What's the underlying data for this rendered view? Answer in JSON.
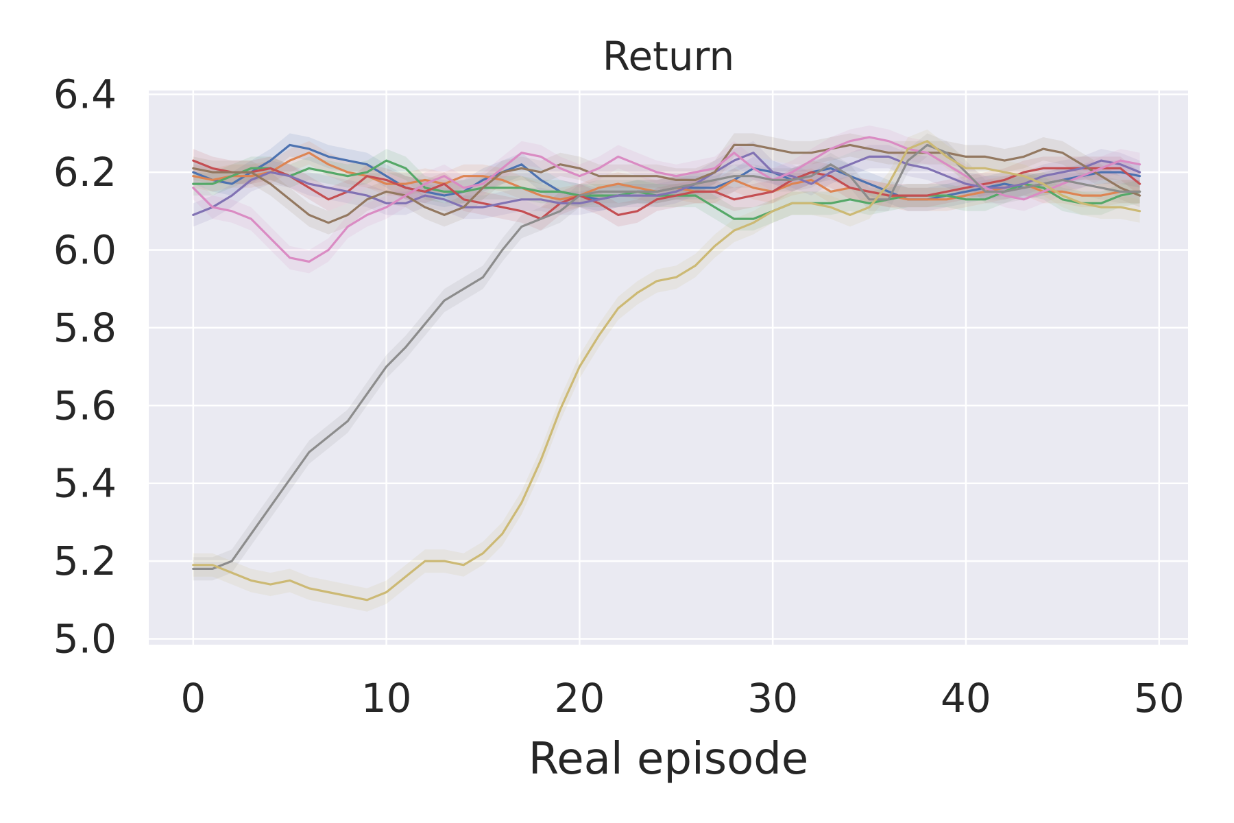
{
  "chart_data": {
    "type": "line",
    "title": "Return",
    "xlabel": "Real episode",
    "ylabel": "",
    "xlim": [
      -2.3,
      51.5
    ],
    "ylim": [
      4.985,
      6.41
    ],
    "xticks": [
      0,
      10,
      20,
      30,
      40,
      50
    ],
    "yticks": [
      5.0,
      5.2,
      5.4,
      5.6,
      5.8,
      6.0,
      6.2,
      6.4
    ],
    "xtick_labels": [
      "0",
      "10",
      "20",
      "30",
      "40",
      "50"
    ],
    "ytick_labels": [
      "5.0",
      "5.2",
      "5.4",
      "5.6",
      "5.8",
      "6.0",
      "6.2",
      "6.4"
    ],
    "grid": true,
    "legend": false,
    "shaded_band": true,
    "x": [
      0,
      1,
      2,
      3,
      4,
      5,
      6,
      7,
      8,
      9,
      10,
      11,
      12,
      13,
      14,
      15,
      16,
      17,
      18,
      19,
      20,
      21,
      22,
      23,
      24,
      25,
      26,
      27,
      28,
      29,
      30,
      31,
      32,
      33,
      34,
      35,
      36,
      37,
      38,
      39,
      40,
      41,
      42,
      43,
      44,
      45,
      46,
      47,
      48,
      49
    ],
    "series": [
      {
        "color": "#4c72b0",
        "values": [
          6.2,
          6.18,
          6.17,
          6.2,
          6.23,
          6.27,
          6.26,
          6.24,
          6.23,
          6.22,
          6.19,
          6.16,
          6.15,
          6.14,
          6.15,
          6.18,
          6.2,
          6.22,
          6.18,
          6.15,
          6.14,
          6.13,
          6.14,
          6.15,
          6.15,
          6.16,
          6.16,
          6.16,
          6.18,
          6.21,
          6.2,
          6.18,
          6.2,
          6.21,
          6.19,
          6.17,
          6.15,
          6.13,
          6.13,
          6.14,
          6.15,
          6.16,
          6.17,
          6.16,
          6.17,
          6.18,
          6.19,
          6.2,
          6.2,
          6.19
        ]
      },
      {
        "color": "#dd8452",
        "values": [
          6.19,
          6.18,
          6.19,
          6.19,
          6.2,
          6.23,
          6.25,
          6.22,
          6.2,
          6.19,
          6.17,
          6.17,
          6.18,
          6.17,
          6.19,
          6.19,
          6.18,
          6.16,
          6.14,
          6.13,
          6.14,
          6.16,
          6.17,
          6.16,
          6.15,
          6.16,
          6.15,
          6.15,
          6.18,
          6.16,
          6.15,
          6.17,
          6.18,
          6.15,
          6.16,
          6.15,
          6.14,
          6.13,
          6.13,
          6.13,
          6.14,
          6.15,
          6.16,
          6.17,
          6.15,
          6.15,
          6.14,
          6.14,
          6.15,
          6.15
        ]
      },
      {
        "color": "#55a868",
        "values": [
          6.17,
          6.17,
          6.19,
          6.21,
          6.21,
          6.19,
          6.21,
          6.2,
          6.19,
          6.2,
          6.23,
          6.21,
          6.16,
          6.15,
          6.15,
          6.16,
          6.16,
          6.16,
          6.15,
          6.15,
          6.14,
          6.14,
          6.14,
          6.15,
          6.14,
          6.14,
          6.14,
          6.11,
          6.08,
          6.08,
          6.1,
          6.12,
          6.12,
          6.12,
          6.13,
          6.12,
          6.13,
          6.14,
          6.14,
          6.14,
          6.13,
          6.13,
          6.15,
          6.17,
          6.16,
          6.13,
          6.12,
          6.12,
          6.14,
          6.15
        ]
      },
      {
        "color": "#c44e52",
        "values": [
          6.23,
          6.21,
          6.2,
          6.2,
          6.21,
          6.19,
          6.16,
          6.13,
          6.15,
          6.19,
          6.18,
          6.16,
          6.15,
          6.17,
          6.13,
          6.12,
          6.11,
          6.1,
          6.08,
          6.12,
          6.14,
          6.12,
          6.09,
          6.1,
          6.13,
          6.14,
          6.15,
          6.15,
          6.13,
          6.14,
          6.15,
          6.18,
          6.2,
          6.19,
          6.16,
          6.15,
          6.14,
          6.14,
          6.14,
          6.15,
          6.16,
          6.17,
          6.18,
          6.2,
          6.21,
          6.21,
          6.21,
          6.21,
          6.21,
          6.17
        ]
      },
      {
        "color": "#8172b3",
        "values": [
          6.09,
          6.11,
          6.14,
          6.18,
          6.2,
          6.19,
          6.17,
          6.16,
          6.15,
          6.14,
          6.12,
          6.12,
          6.14,
          6.13,
          6.11,
          6.11,
          6.12,
          6.13,
          6.13,
          6.12,
          6.12,
          6.13,
          6.14,
          6.14,
          6.14,
          6.15,
          6.17,
          6.2,
          6.23,
          6.25,
          6.2,
          6.19,
          6.17,
          6.2,
          6.22,
          6.24,
          6.24,
          6.22,
          6.21,
          6.19,
          6.17,
          6.16,
          6.16,
          6.17,
          6.19,
          6.2,
          6.21,
          6.23,
          6.22,
          6.2
        ]
      },
      {
        "color": "#937860",
        "values": [
          6.21,
          6.2,
          6.2,
          6.2,
          6.17,
          6.13,
          6.09,
          6.07,
          6.09,
          6.13,
          6.15,
          6.14,
          6.11,
          6.09,
          6.11,
          6.16,
          6.2,
          6.21,
          6.2,
          6.22,
          6.21,
          6.19,
          6.19,
          6.19,
          6.19,
          6.18,
          6.18,
          6.2,
          6.27,
          6.27,
          6.26,
          6.25,
          6.25,
          6.26,
          6.27,
          6.26,
          6.25,
          6.25,
          6.25,
          6.25,
          6.24,
          6.24,
          6.23,
          6.24,
          6.26,
          6.25,
          6.22,
          6.19,
          6.16,
          6.14
        ]
      },
      {
        "color": "#da8bc3",
        "values": [
          6.16,
          6.11,
          6.1,
          6.08,
          6.03,
          5.98,
          5.97,
          6.0,
          6.06,
          6.09,
          6.11,
          6.14,
          6.17,
          6.19,
          6.16,
          6.17,
          6.21,
          6.25,
          6.24,
          6.21,
          6.19,
          6.21,
          6.24,
          6.22,
          6.2,
          6.19,
          6.2,
          6.21,
          6.25,
          6.21,
          6.18,
          6.2,
          6.23,
          6.26,
          6.28,
          6.29,
          6.28,
          6.26,
          6.25,
          6.22,
          6.19,
          6.16,
          6.14,
          6.13,
          6.15,
          6.17,
          6.19,
          6.21,
          6.23,
          6.22
        ]
      },
      {
        "color": "#8c8c8c",
        "values": [
          5.18,
          5.18,
          5.2,
          5.27,
          5.34,
          5.41,
          5.48,
          5.52,
          5.56,
          5.63,
          5.7,
          5.75,
          5.81,
          5.87,
          5.9,
          5.93,
          6.0,
          6.06,
          6.08,
          6.1,
          6.14,
          6.15,
          6.15,
          6.15,
          6.15,
          6.16,
          6.17,
          6.18,
          6.19,
          6.19,
          6.18,
          6.18,
          6.19,
          6.22,
          6.19,
          6.13,
          6.13,
          6.23,
          6.27,
          6.25,
          6.2,
          6.15,
          6.15,
          6.16,
          6.17,
          6.18,
          6.17,
          6.16,
          6.15,
          6.15
        ]
      },
      {
        "color": "#ccb974",
        "values": [
          5.19,
          5.19,
          5.17,
          5.15,
          5.14,
          5.15,
          5.13,
          5.12,
          5.11,
          5.1,
          5.12,
          5.16,
          5.2,
          5.2,
          5.19,
          5.22,
          5.27,
          5.35,
          5.46,
          5.59,
          5.7,
          5.78,
          5.85,
          5.89,
          5.92,
          5.93,
          5.96,
          6.01,
          6.05,
          6.07,
          6.1,
          6.12,
          6.12,
          6.11,
          6.09,
          6.11,
          6.17,
          6.26,
          6.28,
          6.24,
          6.21,
          6.21,
          6.2,
          6.19,
          6.17,
          6.14,
          6.12,
          6.11,
          6.11,
          6.1
        ]
      }
    ]
  }
}
